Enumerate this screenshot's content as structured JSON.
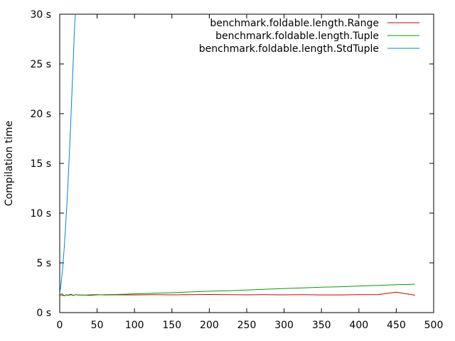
{
  "chart_data": {
    "type": "line",
    "title": "",
    "xlabel": "",
    "ylabel": "Compilation time",
    "xlim": [
      0,
      500
    ],
    "ylim": [
      0,
      30
    ],
    "x_ticks": [
      {
        "value": 0,
        "label": "0"
      },
      {
        "value": 50,
        "label": "50"
      },
      {
        "value": 100,
        "label": "100"
      },
      {
        "value": 150,
        "label": "150"
      },
      {
        "value": 200,
        "label": "200"
      },
      {
        "value": 250,
        "label": "250"
      },
      {
        "value": 300,
        "label": "300"
      },
      {
        "value": 350,
        "label": "350"
      },
      {
        "value": 400,
        "label": "400"
      },
      {
        "value": 450,
        "label": "450"
      },
      {
        "value": 500,
        "label": "500"
      }
    ],
    "y_ticks": [
      {
        "value": 0,
        "label": "0 s"
      },
      {
        "value": 5,
        "label": "5 s"
      },
      {
        "value": 10,
        "label": "10 s"
      },
      {
        "value": 15,
        "label": "15 s"
      },
      {
        "value": 20,
        "label": "20 s"
      },
      {
        "value": 25,
        "label": "25 s"
      },
      {
        "value": 30,
        "label": "30 s"
      }
    ],
    "grid": false,
    "legend_position": "top-right",
    "series": [
      {
        "name": "benchmark.foldable.length.Range",
        "color": "#cc0000",
        "x": [
          0,
          3,
          6,
          9,
          12,
          15,
          18,
          21,
          25,
          30,
          40,
          50,
          60,
          75,
          100,
          125,
          150,
          175,
          200,
          225,
          250,
          275,
          300,
          325,
          350,
          375,
          400,
          425,
          450,
          475
        ],
        "y": [
          1.8,
          1.9,
          1.7,
          1.8,
          1.75,
          1.85,
          1.72,
          1.8,
          1.78,
          1.75,
          1.78,
          1.8,
          1.78,
          1.79,
          1.78,
          1.8,
          1.79,
          1.8,
          1.82,
          1.8,
          1.79,
          1.8,
          1.79,
          1.8,
          1.78,
          1.78,
          1.8,
          1.8,
          2.05,
          1.75
        ]
      },
      {
        "name": "benchmark.foldable.length.Tuple",
        "color": "#00a000",
        "x": [
          0,
          3,
          6,
          9,
          12,
          15,
          18,
          21,
          25,
          30,
          40,
          50,
          60,
          75,
          100,
          125,
          150,
          175,
          200,
          225,
          250,
          275,
          300,
          325,
          350,
          375,
          400,
          425,
          450,
          475
        ],
        "y": [
          1.7,
          1.75,
          1.68,
          1.78,
          1.72,
          1.8,
          1.7,
          1.82,
          1.75,
          1.77,
          1.72,
          1.78,
          1.8,
          1.82,
          1.88,
          1.95,
          2.0,
          2.08,
          2.15,
          2.2,
          2.27,
          2.35,
          2.42,
          2.48,
          2.55,
          2.6,
          2.67,
          2.73,
          2.8,
          2.85
        ]
      },
      {
        "name": "benchmark.foldable.length.StdTuple",
        "color": "#0088cc",
        "x": [
          0,
          2,
          4,
          6,
          8,
          10,
          12,
          14,
          16,
          18,
          20,
          21
        ],
        "y": [
          1.9,
          3.0,
          4.5,
          6.5,
          8.8,
          11.5,
          14.5,
          17.8,
          21.5,
          25.2,
          29.0,
          30
        ]
      }
    ]
  }
}
